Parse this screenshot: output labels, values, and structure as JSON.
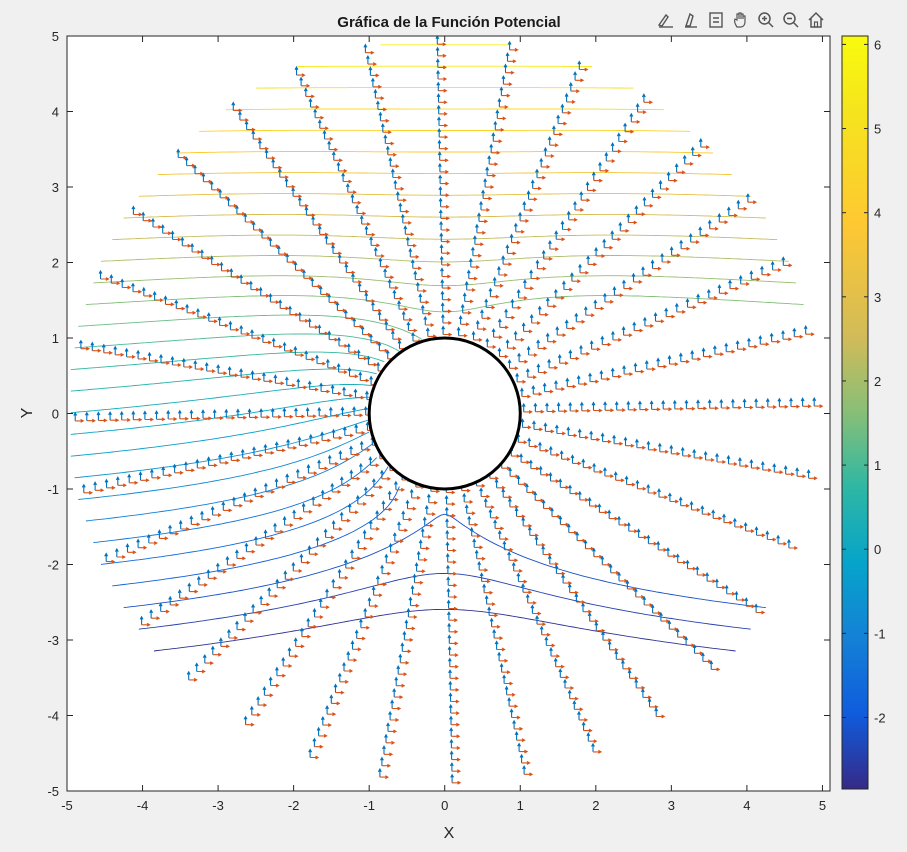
{
  "toolbar": {
    "icons": [
      "brush-icon",
      "data-tips-icon",
      "restore-view-icon",
      "pan-hand-icon",
      "zoom-in-icon",
      "zoom-out-icon",
      "home-icon"
    ]
  },
  "chart_data": {
    "type": "contour",
    "title": "Gráfica de la Función Potencial",
    "xlabel": "X",
    "ylabel": "Y",
    "xlim": [
      -5,
      5.1
    ],
    "ylim": [
      -5,
      5
    ],
    "xticks": [
      -5,
      -4,
      -3,
      -2,
      -1,
      0,
      1,
      2,
      3,
      4,
      5
    ],
    "yticks": [
      -5,
      -4,
      -3,
      -2,
      -1,
      0,
      1,
      2,
      3,
      4,
      5
    ],
    "colorbar": {
      "colormap": "parula",
      "range": [
        -2.85,
        6.1
      ],
      "ticks": [
        -2,
        -1,
        0,
        1,
        2,
        3,
        4,
        5,
        6
      ]
    },
    "domain": {
      "inner_radius": 1,
      "outer_radius": 5,
      "cylinder_circle_radius": 1
    },
    "contour_levels": {
      "count": 30,
      "min": -2.85,
      "max": 6.1
    },
    "quiver": {
      "radial_lines": 32,
      "samples_per_line": 26,
      "field_1_color": "#0072bd",
      "field_2_color": "#d95319"
    },
    "grid": false,
    "legend": "none"
  }
}
